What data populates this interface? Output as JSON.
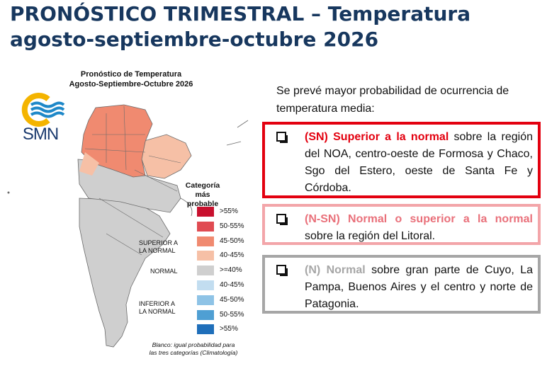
{
  "header": {
    "title_line1": "PRONÓSTICO TRIMESTRAL – Temperatura",
    "title_line2": "agosto-septiembre-octubre 2026"
  },
  "logo": {
    "text": "SMN"
  },
  "map": {
    "title_line1": "Pronóstico de Temperatura",
    "title_line2": "Agosto-Septiembre-Octubre 2026",
    "legend": {
      "title_line1": "Categoría más",
      "title_line2": "probable",
      "items": [
        {
          "label": ">55%",
          "color": "#c8102e"
        },
        {
          "label": "50-55%",
          "color": "#e04b52"
        },
        {
          "label": "45-50%",
          "color": "#f08a70"
        },
        {
          "label": "40-45%",
          "color": "#f6c0a6"
        },
        {
          "label": ">=40%",
          "color": "#cfcfcf"
        },
        {
          "label": "40-45%",
          "color": "#c2ddf0"
        },
        {
          "label": "45-50%",
          "color": "#8ec3e6"
        },
        {
          "label": "50-55%",
          "color": "#4f9fd3"
        },
        {
          "label": ">55%",
          "color": "#1f6fba"
        }
      ],
      "categories": {
        "superior_line1": "SUPERIOR A",
        "superior_line2": "LA NORMAL",
        "normal": "NORMAL",
        "inferior_line1": "INFERIOR A",
        "inferior_line2": "LA NORMAL"
      }
    },
    "footnote_line1": "Blanco: igual probabilidad para",
    "footnote_line2": "las tres categorías (Climatología)"
  },
  "text_panel": {
    "intro": "Se prevé mayor probabilidad de ocurrencia de temperatura media:",
    "items": [
      {
        "highlight": "(SN) Superior a la normal",
        "rest": " sobre la región del NOA, centro-oeste de Formosa y Chaco, Sgo del Estero, oeste de Santa Fe y Córdoba.",
        "border_color": "#e3000f"
      },
      {
        "highlight": "(N-SN) Normal o superior a la normal",
        "rest": " sobre la región del Litoral.",
        "border_color": "#f3a5a9"
      },
      {
        "highlight": "(N) Normal",
        "rest": "  sobre gran parte de Cuyo, La Pampa, Buenos Aires y el centro y norte de Patagonia.",
        "border_color": "#a6a6a6"
      }
    ]
  }
}
